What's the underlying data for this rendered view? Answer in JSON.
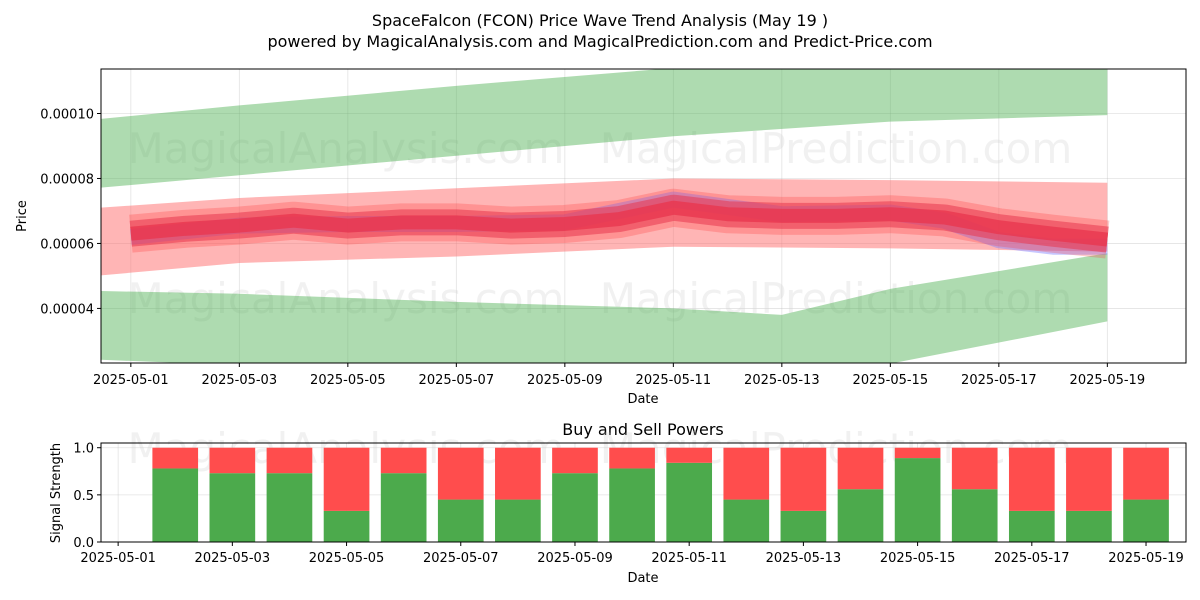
{
  "header": {
    "title": "SpaceFalcon (FCON) Price Wave Trend Analysis (May 19 )",
    "subtitle": "powered by MagicalAnalysis.com and MagicalPrediction.com and Predict-Price.com"
  },
  "watermarks": [
    "MagicalAnalysis.com",
    "MagicalPrediction.com"
  ],
  "colors": {
    "green_band": "#4caf50",
    "red_band": "#ff6b6b",
    "core_line": "#e8374f",
    "blue_wave": "#8080ff",
    "buy": "#4caa4c",
    "sell": "#ff4d4d"
  },
  "chart_data": [
    {
      "type": "area",
      "xlabel": "Date",
      "ylabel": "Price",
      "xlim": [
        "2025-04-30",
        "2025-05-20"
      ],
      "ylim": [
        2.32e-05,
        0.0001137
      ],
      "grid": true,
      "x_ticks": [
        "2025-05-01",
        "2025-05-03",
        "2025-05-05",
        "2025-05-07",
        "2025-05-09",
        "2025-05-11",
        "2025-05-13",
        "2025-05-15",
        "2025-05-17",
        "2025-05-19"
      ],
      "y_ticks": [
        4e-05,
        6e-05,
        8e-05,
        0.0001
      ],
      "y_tick_labels": [
        "0.00004",
        "0.00006",
        "0.00008",
        "0.00010"
      ],
      "upper_green_band": {
        "x": [
          "2025-04-30",
          "2025-05-03",
          "2025-05-07",
          "2025-05-11",
          "2025-05-15",
          "2025-05-19"
        ],
        "top": [
          9.76e-05,
          0.0001025,
          0.0001085,
          0.000114,
          0.0001165,
          0.0001172
        ],
        "bottom": [
          7.65e-05,
          8.1e-05,
          8.7e-05,
          9.3e-05,
          9.75e-05,
          9.95e-05
        ]
      },
      "lower_green_band": {
        "x": [
          "2025-04-30",
          "2025-05-03",
          "2025-05-07",
          "2025-05-11",
          "2025-05-13",
          "2025-05-15",
          "2025-05-19"
        ],
        "top": [
          4.55e-05,
          4.45e-05,
          4.2e-05,
          4e-05,
          3.8e-05,
          4.6e-05,
          5.7e-05
        ],
        "bottom": [
          2.45e-05,
          2.25e-05,
          2e-05,
          1.8e-05,
          1.7e-05,
          2.3e-05,
          3.6e-05
        ]
      },
      "red_band": {
        "x": [
          "2025-04-30",
          "2025-05-03",
          "2025-05-07",
          "2025-05-11",
          "2025-05-15",
          "2025-05-19"
        ],
        "top": [
          7.05e-05,
          7.4e-05,
          7.7e-05,
          8e-05,
          7.95e-05,
          7.87e-05
        ],
        "bottom": [
          4.95e-05,
          5.4e-05,
          5.6e-05,
          5.9e-05,
          5.85e-05,
          5.75e-05
        ]
      },
      "core_trend": {
        "x": [
          "2025-05-01",
          "2025-05-02",
          "2025-05-03",
          "2025-05-04",
          "2025-05-05",
          "2025-05-06",
          "2025-05-07",
          "2025-05-08",
          "2025-05-09",
          "2025-05-10",
          "2025-05-11",
          "2025-05-12",
          "2025-05-13",
          "2025-05-14",
          "2025-05-15",
          "2025-05-16",
          "2025-05-17",
          "2025-05-18",
          "2025-05-19"
        ],
        "values": [
          6.3e-05,
          6.45e-05,
          6.55e-05,
          6.7e-05,
          6.55e-05,
          6.65e-05,
          6.65e-05,
          6.55e-05,
          6.6e-05,
          6.75e-05,
          7.1e-05,
          6.9e-05,
          6.85e-05,
          6.85e-05,
          6.9e-05,
          6.8e-05,
          6.5e-05,
          6.3e-05,
          6.12e-05
        ]
      },
      "blue_wave": {
        "x": [
          "2025-05-01",
          "2025-05-03",
          "2025-05-05",
          "2025-05-07",
          "2025-05-09",
          "2025-05-11",
          "2025-05-13",
          "2025-05-15",
          "2025-05-16",
          "2025-05-17",
          "2025-05-18",
          "2025-05-19"
        ],
        "values": [
          6.2e-05,
          6.55e-05,
          6.6e-05,
          6.6e-05,
          6.65e-05,
          7.35e-05,
          6.9e-05,
          6.95e-05,
          6.7e-05,
          6.1e-05,
          5.9e-05,
          5.9e-05
        ]
      }
    },
    {
      "type": "bar",
      "title": "Buy and Sell Powers",
      "xlabel": "Date",
      "ylabel": "Signal Strength",
      "xlim": [
        "2025-05-01",
        "2025-05-20"
      ],
      "ylim": [
        0,
        1.05
      ],
      "grid": true,
      "x_ticks": [
        "2025-05-01",
        "2025-05-03",
        "2025-05-05",
        "2025-05-07",
        "2025-05-09",
        "2025-05-11",
        "2025-05-13",
        "2025-05-15",
        "2025-05-17",
        "2025-05-19"
      ],
      "y_ticks": [
        0.0,
        0.5,
        1.0
      ],
      "y_tick_labels": [
        "0.0",
        "0.5",
        "1.0"
      ],
      "categories": [
        "2025-05-02",
        "2025-05-03",
        "2025-05-04",
        "2025-05-05",
        "2025-05-06",
        "2025-05-07",
        "2025-05-08",
        "2025-05-09",
        "2025-05-10",
        "2025-05-11",
        "2025-05-12",
        "2025-05-13",
        "2025-05-14",
        "2025-05-15",
        "2025-05-16",
        "2025-05-17",
        "2025-05-18",
        "2025-05-19"
      ],
      "series": [
        {
          "values": [
            0.78,
            0.73,
            0.73,
            0.33,
            0.73,
            0.45,
            0.45,
            0.73,
            0.78,
            0.84,
            0.45,
            0.33,
            0.56,
            0.89,
            0.56,
            0.33,
            0.33,
            0.45
          ]
        },
        {
          "values": [
            0.22,
            0.27,
            0.27,
            0.67,
            0.27,
            0.55,
            0.55,
            0.27,
            0.22,
            0.16,
            0.55,
            0.67,
            0.44,
            0.11,
            0.44,
            0.67,
            0.67,
            0.55
          ]
        }
      ]
    }
  ]
}
